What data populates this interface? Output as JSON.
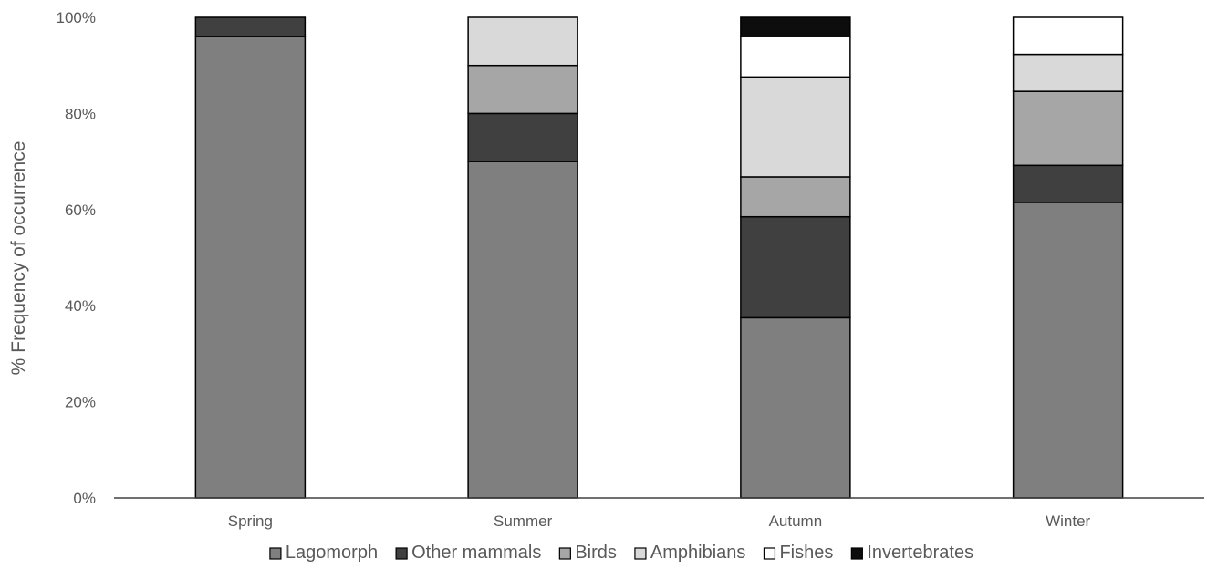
{
  "chart_data": {
    "type": "bar",
    "stacked": true,
    "title": "",
    "xlabel": "",
    "ylabel": "% Frequency of occurrence",
    "ylim": [
      0,
      100
    ],
    "yticks": [
      "0%",
      "20%",
      "40%",
      "60%",
      "80%",
      "100%"
    ],
    "ytick_values": [
      0,
      20,
      40,
      60,
      80,
      100
    ],
    "categories": [
      "Spring",
      "Summer",
      "Autumn",
      "Winter"
    ],
    "grid": false,
    "legend_position": "bottom",
    "series": [
      {
        "name": "Lagomorph",
        "color": "#7f7f7f",
        "values": [
          96,
          70,
          37.5,
          61.5
        ]
      },
      {
        "name": "Other mammals",
        "color": "#404040",
        "values": [
          4,
          10,
          21,
          7.7
        ]
      },
      {
        "name": "Birds",
        "color": "#a6a6a6",
        "values": [
          0,
          10,
          8.3,
          15.4
        ]
      },
      {
        "name": "Amphibians",
        "color": "#d9d9d9",
        "values": [
          0,
          10,
          20.8,
          7.7
        ]
      },
      {
        "name": "Fishes",
        "color": "#ffffff",
        "values": [
          0,
          0,
          8.4,
          7.7
        ]
      },
      {
        "name": "Invertebrates",
        "color": "#0d0d0d",
        "values": [
          0,
          0,
          4,
          0
        ]
      }
    ]
  }
}
